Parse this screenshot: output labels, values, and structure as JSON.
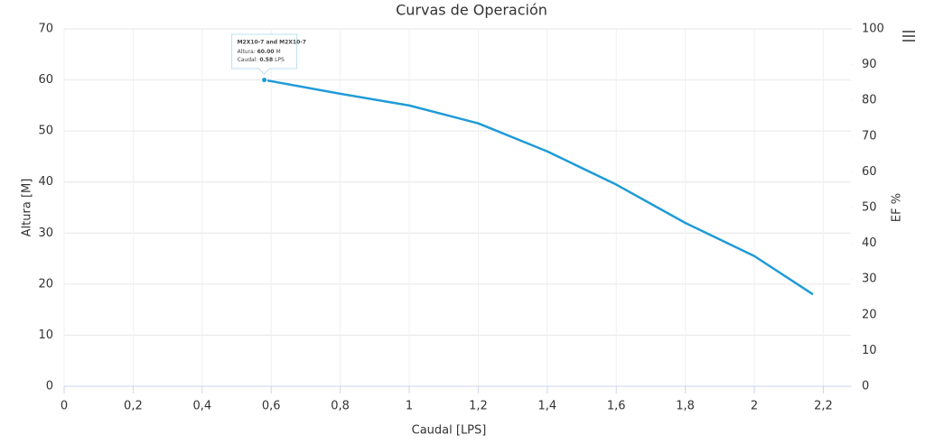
{
  "chart_data": {
    "type": "line",
    "title": "Curvas de Operación",
    "x_label": "Caudal [LPS]",
    "y_label": "Altura [M]",
    "y2_label": "EF %",
    "x": [
      0.58,
      0.8,
      1.0,
      1.2,
      1.4,
      1.6,
      1.8,
      2.0,
      2.17
    ],
    "series": [
      {
        "name": "M2X10-7 and M2X10-7",
        "color": "#1f9bd7",
        "values": [
          60,
          57.3,
          55,
          51.5,
          46,
          39.5,
          32,
          25.5,
          18
        ]
      }
    ],
    "xlim": [
      0,
      2.28
    ],
    "xticks": [
      0,
      {
        "value": 0.2,
        "label": "0,2"
      },
      {
        "value": 0.4,
        "label": "0,4"
      },
      {
        "value": 0.6,
        "label": "0,6"
      },
      {
        "value": 0.8,
        "label": "0,8"
      },
      1,
      {
        "value": 1.2,
        "label": "1,2"
      },
      {
        "value": 1.4,
        "label": "1,4"
      },
      {
        "value": 1.6,
        "label": "1,6"
      },
      {
        "value": 1.8,
        "label": "1,8"
      },
      2,
      {
        "value": 2.2,
        "label": "2,2"
      }
    ],
    "ylim": [
      0,
      70
    ],
    "yticks": [
      0,
      10,
      20,
      30,
      40,
      50,
      60,
      70
    ],
    "y2lim": [
      0,
      100
    ],
    "y2ticks": [
      0,
      10,
      20,
      30,
      40,
      50,
      60,
      70,
      80,
      90,
      100
    ],
    "grid": true,
    "tooltip": {
      "lines": [
        {
          "label": "Altura:",
          "value": "60.00",
          "unit": "M"
        },
        {
          "label": "Caudal:",
          "value": "0.58",
          "unit": "LPS"
        }
      ]
    }
  }
}
